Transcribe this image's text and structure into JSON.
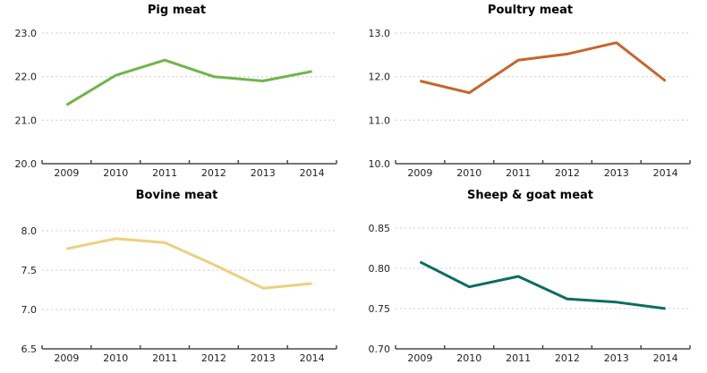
{
  "style": {
    "background": "#FFFFFF",
    "grid_color": "#CCCCCC",
    "axis_color": "#4A4A4A",
    "tick_text_color": "#1F1F1F",
    "title_color": "#000000"
  },
  "chart_data": [
    {
      "type": "line",
      "title": "Pig meat",
      "color": "#71B54A",
      "categories": [
        "2009",
        "2010",
        "2011",
        "2012",
        "2013",
        "2014"
      ],
      "values": [
        21.35,
        22.03,
        22.38,
        22.0,
        21.9,
        22.12
      ],
      "ylim": [
        20.0,
        23.0
      ],
      "yticks": [
        20.0,
        21.0,
        22.0,
        23.0
      ],
      "ytick_labels": [
        "20.0",
        "21.0",
        "22.0",
        "23.0"
      ],
      "xlabel": "",
      "ylabel": "",
      "grid": true,
      "legend_position": "none"
    },
    {
      "type": "line",
      "title": "Poultry meat",
      "color": "#C5662B",
      "categories": [
        "2009",
        "2010",
        "2011",
        "2012",
        "2013",
        "2014"
      ],
      "values": [
        11.9,
        11.63,
        12.38,
        12.52,
        12.78,
        11.9
      ],
      "ylim": [
        10.0,
        13.0
      ],
      "yticks": [
        10.0,
        11.0,
        12.0,
        13.0
      ],
      "ytick_labels": [
        "10.0",
        "11.0",
        "12.0",
        "13.0"
      ],
      "xlabel": "",
      "ylabel": "",
      "grid": true,
      "legend_position": "none"
    },
    {
      "type": "line",
      "title": "Bovine meat",
      "color": "#EBD17E",
      "categories": [
        "2009",
        "2010",
        "2011",
        "2012",
        "2013",
        "2014"
      ],
      "values": [
        7.77,
        7.9,
        7.85,
        7.57,
        7.27,
        7.33
      ],
      "ylim": [
        6.5,
        8.0
      ],
      "yticks": [
        6.5,
        7.0,
        7.5,
        8.0
      ],
      "ytick_labels": [
        "6.5",
        "7.0",
        "7.5",
        "8.0"
      ],
      "xlabel": "",
      "ylabel": "",
      "grid": true,
      "legend_position": "none"
    },
    {
      "type": "line",
      "title": "Sheep & goat meat",
      "color": "#0B6E61",
      "categories": [
        "2009",
        "2010",
        "2011",
        "2012",
        "2013",
        "2014"
      ],
      "values": [
        0.808,
        0.777,
        0.79,
        0.762,
        0.758,
        0.75
      ],
      "ylim": [
        0.7,
        0.85
      ],
      "yticks": [
        0.7,
        0.75,
        0.8,
        0.85
      ],
      "ytick_labels": [
        "0.70",
        "0.75",
        "0.80",
        "0.85"
      ],
      "xlabel": "",
      "ylabel": "",
      "grid": true,
      "legend_position": "none"
    }
  ]
}
